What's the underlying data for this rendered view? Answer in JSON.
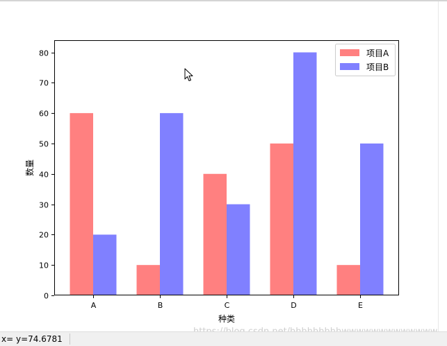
{
  "chart_data": {
    "type": "bar",
    "categories": [
      "A",
      "B",
      "C",
      "D",
      "E"
    ],
    "series": [
      {
        "name": "项目A",
        "values": [
          60,
          10,
          40,
          50,
          10
        ],
        "color": "#ff8080"
      },
      {
        "name": "项目B",
        "values": [
          20,
          60,
          30,
          80,
          50
        ],
        "color": "#8080ff"
      }
    ],
    "title": "",
    "xlabel": "种类",
    "ylabel": "数量",
    "ylim": [
      0,
      84
    ],
    "yticks": [
      0,
      10,
      20,
      30,
      40,
      50,
      60,
      70,
      80
    ],
    "grid": false,
    "legend": "upper right"
  },
  "status": {
    "coords": "x= y=74.6781"
  },
  "watermark": "https://blog.csdn.net/hhhhhhhhhwwwwwwwwwwwww"
}
